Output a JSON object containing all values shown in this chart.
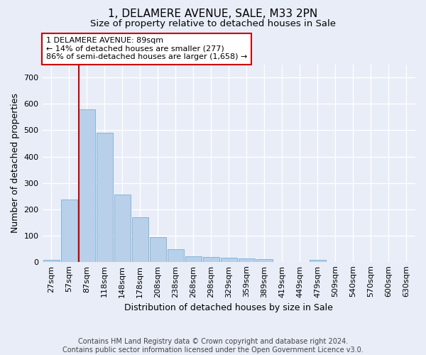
{
  "title": "1, DELAMERE AVENUE, SALE, M33 2PN",
  "subtitle": "Size of property relative to detached houses in Sale",
  "xlabel": "Distribution of detached houses by size in Sale",
  "ylabel": "Number of detached properties",
  "footnote": "Contains HM Land Registry data © Crown copyright and database right 2024.\nContains public sector information licensed under the Open Government Licence v3.0.",
  "bar_labels": [
    "27sqm",
    "57sqm",
    "87sqm",
    "118sqm",
    "148sqm",
    "178sqm",
    "208sqm",
    "238sqm",
    "268sqm",
    "298sqm",
    "329sqm",
    "359sqm",
    "389sqm",
    "419sqm",
    "449sqm",
    "479sqm",
    "509sqm",
    "540sqm",
    "570sqm",
    "600sqm",
    "630sqm"
  ],
  "bar_values": [
    8,
    238,
    580,
    490,
    255,
    168,
    93,
    48,
    22,
    18,
    14,
    12,
    10,
    0,
    0,
    8,
    0,
    0,
    0,
    0,
    0
  ],
  "bar_color": "#b8d0ea",
  "bar_edge_color": "#7aafd4",
  "property_line_label": "1 DELAMERE AVENUE: 89sqm",
  "annotation_line1": "← 14% of detached houses are smaller (277)",
  "annotation_line2": "86% of semi-detached houses are larger (1,658) →",
  "line_color": "#cc0000",
  "annotation_box_color": "#ffffff",
  "annotation_box_edge": "#cc0000",
  "ylim": [
    0,
    750
  ],
  "yticks": [
    0,
    100,
    200,
    300,
    400,
    500,
    600,
    700
  ],
  "background_color": "#e8edf8",
  "plot_bg_color": "#e8edf8",
  "grid_color": "#ffffff",
  "title_fontsize": 11,
  "subtitle_fontsize": 9.5,
  "axis_label_fontsize": 9,
  "tick_fontsize": 8,
  "footnote_fontsize": 7
}
